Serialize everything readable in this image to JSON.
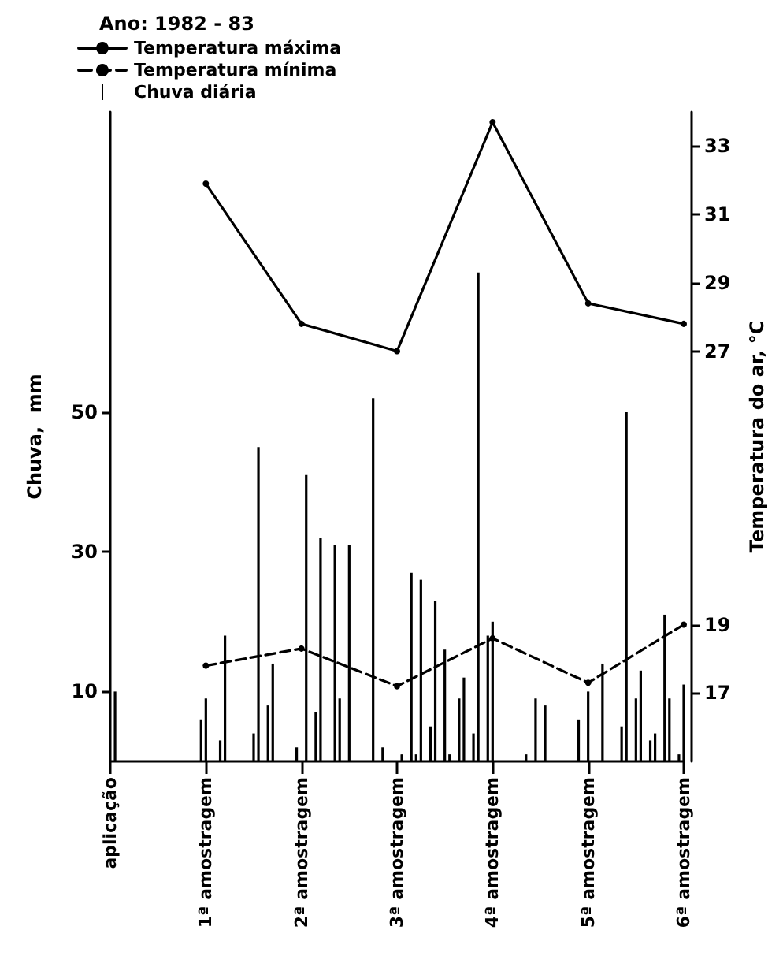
{
  "chart_data": {
    "type": "bar",
    "legend_title": "Ano: 1982 - 83",
    "ylabel": "Chuva,  mm",
    "y2label": "Temperatura do ar, °C",
    "categories": [
      "aplicação",
      null,
      null,
      null,
      null,
      null,
      null,
      null,
      null,
      null,
      null,
      null,
      null,
      null,
      null,
      null,
      null,
      null,
      null,
      null,
      "1ª amostragem",
      null,
      null,
      null,
      null,
      null,
      null,
      null,
      null,
      null,
      null,
      null,
      null,
      null,
      null,
      null,
      null,
      null,
      null,
      null,
      "2ª amostragem",
      null,
      null,
      null,
      null,
      null,
      null,
      null,
      null,
      null,
      null,
      null,
      null,
      null,
      null,
      null,
      null,
      null,
      null,
      null,
      "3ª amostragem",
      null,
      null,
      null,
      null,
      null,
      null,
      null,
      null,
      null,
      null,
      null,
      null,
      null,
      null,
      null,
      null,
      null,
      null,
      null,
      "4ª amostragem",
      null,
      null,
      null,
      null,
      null,
      null,
      null,
      null,
      null,
      null,
      null,
      null,
      null,
      null,
      null,
      null,
      null,
      null,
      null,
      "5ª amostragem",
      null,
      null,
      null,
      null,
      null,
      null,
      null,
      null,
      null,
      null,
      null,
      null,
      null,
      null,
      null,
      null,
      null,
      null,
      null,
      "6ª amostragem"
    ],
    "series": [
      {
        "name": "Temperatura máxima",
        "type": "line",
        "axis": "y2",
        "color": "#000000",
        "line_style": "solid",
        "x": [
          "1ª amostragem",
          "2ª amostragem",
          "3ª amostragem",
          "4ª amostragem",
          "5ª amostragem",
          "6ª amostragem"
        ],
        "values": [
          31.9,
          27.8,
          27.0,
          33.7,
          28.4,
          27.8
        ]
      },
      {
        "name": "Temperatura mínima",
        "type": "line",
        "axis": "y2",
        "color": "#000000",
        "line_style": "dashed",
        "x": [
          "1ª amostragem",
          "2ª amostragem",
          "3ª amostragem",
          "4ª amostragem",
          "5ª amostragem",
          "6ª amostragem"
        ],
        "values": [
          17.8,
          18.3,
          17.2,
          18.6,
          17.3,
          19.0
        ]
      },
      {
        "name": "Chuva diária",
        "color": "#000000",
        "values": [
          null,
          10,
          null,
          null,
          null,
          null,
          null,
          null,
          null,
          null,
          null,
          null,
          null,
          null,
          null,
          null,
          null,
          null,
          null,
          6,
          9,
          null,
          null,
          3,
          18,
          null,
          null,
          null,
          null,
          null,
          4,
          45,
          null,
          8,
          14,
          null,
          null,
          null,
          null,
          2,
          null,
          41,
          null,
          7,
          32,
          null,
          null,
          31,
          9,
          null,
          31,
          null,
          null,
          null,
          null,
          52,
          null,
          2,
          null,
          null,
          null,
          1,
          null,
          27,
          1,
          26,
          null,
          5,
          23,
          null,
          16,
          1,
          null,
          9,
          12,
          null,
          4,
          70,
          null,
          18,
          20,
          null,
          null,
          null,
          null,
          null,
          null,
          1,
          null,
          9,
          null,
          8,
          null,
          null,
          null,
          null,
          null,
          null,
          6,
          null,
          10,
          null,
          null,
          14,
          null,
          null,
          null,
          5,
          50,
          null,
          9,
          13,
          null,
          3,
          4,
          null,
          21,
          9,
          null,
          1,
          11
        ]
      }
    ],
    "ylim": [
      0,
      93
    ],
    "yticks": [
      10,
      30,
      50
    ],
    "y2lim": [
      15,
      34
    ],
    "y2ticks": [
      17,
      19,
      27,
      29,
      31,
      33
    ],
    "grid": false,
    "legend": "top left",
    "marker": "circle"
  }
}
